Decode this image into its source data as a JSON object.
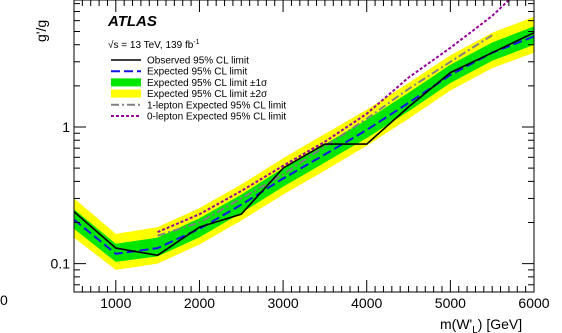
{
  "chart_data": {
    "type": "line",
    "experiment": "ATLAS",
    "info_prefix": "√s = 13 TeV, 139 fb",
    "info_exponent": "-1",
    "ylabel": "g'/g",
    "xlabel": "m(W'L) [GeV]",
    "xlabel_parts": {
      "main": "m(W'",
      "sub": "L",
      "tail": ") [GeV]"
    },
    "xlim": [
      500,
      6000
    ],
    "ylim": [
      0.062,
      8.5
    ],
    "yscale": "log",
    "x_ticks": [
      1000,
      2000,
      3000,
      4000,
      5000,
      6000
    ],
    "x_tick_labels": [
      "1000",
      "2000",
      "3000",
      "4000",
      "5000",
      "6000"
    ],
    "y_ticks": [
      0.1,
      1
    ],
    "y_tick_labels": [
      "0.1",
      "1"
    ],
    "stray_left_label": "0",
    "legend": {
      "placement": "top-left",
      "entries": [
        {
          "key": "observed",
          "label": "Observed 95% CL limit"
        },
        {
          "key": "expected",
          "label": "Expected 95% CL limit"
        },
        {
          "key": "band1",
          "label": "Expected 95% CL limit ±1σ"
        },
        {
          "key": "band2",
          "label": "Expected 95% CL limit ±2σ"
        },
        {
          "key": "onelep",
          "label": "1-lepton Expected 95% CL limit"
        },
        {
          "key": "zerolep",
          "label": "0-lepton Expected 95% CL limit"
        }
      ]
    },
    "x": [
      500,
      1000,
      1500,
      2000,
      2500,
      3000,
      3500,
      4000,
      4500,
      5000,
      5500,
      6000
    ],
    "series": [
      {
        "key": "observed",
        "values": [
          0.24,
          0.13,
          0.115,
          0.185,
          0.23,
          0.5,
          0.75,
          0.75,
          1.4,
          2.5,
          3.5,
          4.9
        ]
      },
      {
        "key": "expected",
        "values": [
          0.21,
          0.118,
          0.13,
          0.18,
          0.27,
          0.42,
          0.63,
          0.95,
          1.5,
          2.4,
          3.5,
          4.6
        ]
      },
      {
        "key": "onelep",
        "x": [
          1500,
          2000,
          2500,
          3000,
          3500,
          4000,
          4500,
          5000,
          5500
        ],
        "values": [
          0.16,
          0.2,
          0.3,
          0.45,
          0.72,
          1.15,
          1.9,
          3.0,
          4.7
        ]
      },
      {
        "key": "zerolep",
        "x": [
          1500,
          2000,
          2500,
          3000,
          3500,
          4000,
          4500,
          5000,
          5500,
          5700
        ],
        "values": [
          0.17,
          0.23,
          0.34,
          0.52,
          0.78,
          1.25,
          2.3,
          3.8,
          6.5,
          8.5
        ]
      }
    ],
    "band1": {
      "lower": [
        0.18,
        0.103,
        0.113,
        0.156,
        0.235,
        0.365,
        0.55,
        0.83,
        1.3,
        2.1,
        3.05,
        4.0
      ],
      "upper": [
        0.25,
        0.14,
        0.155,
        0.215,
        0.32,
        0.5,
        0.75,
        1.13,
        1.78,
        2.85,
        4.15,
        5.45
      ]
    },
    "band2": {
      "lower": [
        0.155,
        0.09,
        0.1,
        0.138,
        0.207,
        0.32,
        0.48,
        0.73,
        1.15,
        1.85,
        2.7,
        3.5
      ],
      "upper": [
        0.3,
        0.165,
        0.185,
        0.255,
        0.38,
        0.59,
        0.89,
        1.34,
        2.1,
        3.35,
        4.9,
        6.4
      ]
    },
    "colors": {
      "observed": "#000000",
      "expected": "#1414e6",
      "band1": "#00e600",
      "band2": "#ffff00",
      "onelep": "#808080",
      "zerolep": "#990099"
    },
    "grid": false
  }
}
